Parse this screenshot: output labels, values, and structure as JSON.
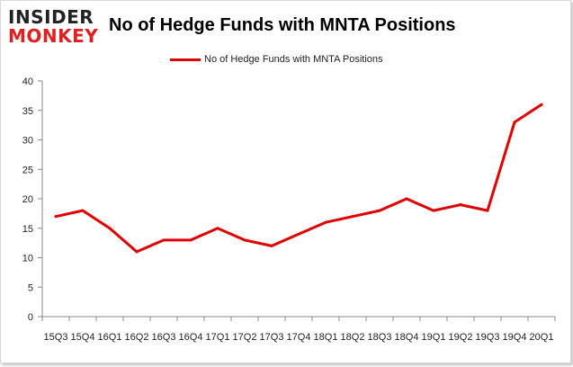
{
  "brand": {
    "line1": "INSIDER",
    "line2": "MONKEY"
  },
  "chart_data": {
    "type": "line",
    "title": "No of Hedge Funds with MNTA Positions",
    "categories": [
      "15Q3",
      "15Q4",
      "16Q1",
      "16Q2",
      "16Q3",
      "16Q4",
      "17Q1",
      "17Q2",
      "17Q3",
      "17Q4",
      "18Q1",
      "18Q2",
      "18Q3",
      "18Q4",
      "19Q1",
      "19Q2",
      "19Q3",
      "19Q4",
      "20Q1"
    ],
    "series": [
      {
        "name": "No of Hedge Funds with MNTA Positions",
        "color": "#e00000",
        "values": [
          17,
          18,
          15,
          11,
          13,
          13,
          15,
          13,
          12,
          14,
          16,
          17,
          18,
          20,
          18,
          19,
          18,
          33,
          36
        ]
      }
    ],
    "xlabel": "",
    "ylabel": "",
    "ylim": [
      0,
      40
    ],
    "yticks": [
      0,
      5,
      10,
      15,
      20,
      25,
      30,
      35,
      40
    ],
    "grid": false,
    "legend": "top-center"
  }
}
